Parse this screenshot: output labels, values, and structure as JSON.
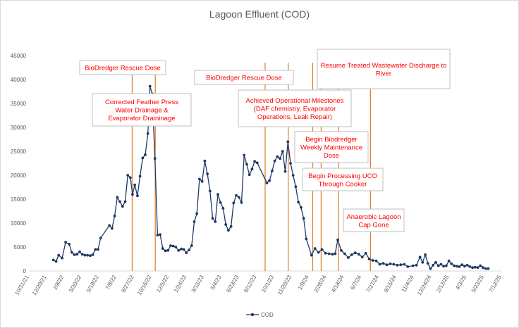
{
  "chart_data": {
    "type": "line",
    "title": "Lagoon Effluent (COD)",
    "xlabel": "",
    "ylabel": "",
    "ylim": [
      0,
      45000
    ],
    "y_ticks": [
      0,
      5000,
      10000,
      15000,
      20000,
      25000,
      30000,
      35000,
      40000,
      45000
    ],
    "x_tick_labels": [
      "10/31/21",
      "12/20/21",
      "2/8/22",
      "3/30/22",
      "5/19/22",
      "7/8/22",
      "8/27/22",
      "10/16/22",
      "12/5/22",
      "1/24/23",
      "3/15/23",
      "5/4/23",
      "6/23/23",
      "8/12/23",
      "10/1/23",
      "11/20/23",
      "1/9/24",
      "2/28/24",
      "4/18/24",
      "6/7/24",
      "7/27/24",
      "9/15/24",
      "11/4/24",
      "12/24/24",
      "2/12/25",
      "4/3/25",
      "5/23/25",
      "7/12/25"
    ],
    "x_range": [
      0,
      27
    ],
    "legend": [
      "COD"
    ],
    "legend_position": "bottom",
    "series": [
      {
        "name": "COD",
        "color": "#1f3864",
        "points": [
          [
            1.4,
            2300
          ],
          [
            1.55,
            2000
          ],
          [
            1.7,
            3300
          ],
          [
            1.9,
            2700
          ],
          [
            2.1,
            6000
          ],
          [
            2.3,
            5600
          ],
          [
            2.45,
            3900
          ],
          [
            2.6,
            3400
          ],
          [
            2.75,
            3500
          ],
          [
            2.9,
            4000
          ],
          [
            3.05,
            3500
          ],
          [
            3.2,
            3300
          ],
          [
            3.35,
            3300
          ],
          [
            3.5,
            3200
          ],
          [
            3.65,
            3400
          ],
          [
            3.8,
            4500
          ],
          [
            3.95,
            4500
          ],
          [
            4.1,
            6900
          ],
          [
            4.6,
            9500
          ],
          [
            4.75,
            8900
          ],
          [
            4.9,
            11500
          ],
          [
            5.05,
            15400
          ],
          [
            5.2,
            14500
          ],
          [
            5.35,
            13500
          ],
          [
            5.5,
            14500
          ],
          [
            5.65,
            20000
          ],
          [
            5.8,
            19500
          ],
          [
            5.92,
            16000
          ],
          [
            6.05,
            18000
          ],
          [
            6.2,
            15700
          ],
          [
            6.35,
            19800
          ],
          [
            6.5,
            23600
          ],
          [
            6.65,
            24300
          ],
          [
            6.8,
            28700
          ],
          [
            6.92,
            38600
          ],
          [
            7.05,
            37000
          ],
          [
            7.2,
            23500
          ],
          [
            7.35,
            7500
          ],
          [
            7.5,
            7600
          ],
          [
            7.65,
            4700
          ],
          [
            7.8,
            4200
          ],
          [
            7.95,
            4300
          ],
          [
            8.1,
            5300
          ],
          [
            8.25,
            5200
          ],
          [
            8.4,
            5000
          ],
          [
            8.55,
            4300
          ],
          [
            8.7,
            4600
          ],
          [
            8.85,
            4500
          ],
          [
            9.0,
            3800
          ],
          [
            9.15,
            4400
          ],
          [
            9.3,
            5300
          ],
          [
            9.45,
            10300
          ],
          [
            9.6,
            12000
          ],
          [
            9.75,
            19200
          ],
          [
            9.9,
            18700
          ],
          [
            10.05,
            23000
          ],
          [
            10.2,
            20300
          ],
          [
            10.35,
            16700
          ],
          [
            10.5,
            11000
          ],
          [
            10.65,
            10300
          ],
          [
            10.8,
            16000
          ],
          [
            10.95,
            14300
          ],
          [
            11.1,
            13100
          ],
          [
            11.25,
            9700
          ],
          [
            11.4,
            8500
          ],
          [
            11.55,
            9300
          ],
          [
            11.7,
            14200
          ],
          [
            11.85,
            15800
          ],
          [
            12.0,
            15400
          ],
          [
            12.15,
            14300
          ],
          [
            12.3,
            24200
          ],
          [
            12.45,
            22300
          ],
          [
            12.6,
            20100
          ],
          [
            12.75,
            21300
          ],
          [
            12.9,
            22900
          ],
          [
            13.05,
            22600
          ],
          [
            13.6,
            18400
          ],
          [
            13.75,
            18900
          ],
          [
            13.9,
            20900
          ],
          [
            14.05,
            23000
          ],
          [
            14.2,
            23900
          ],
          [
            14.35,
            23500
          ],
          [
            14.5,
            25000
          ],
          [
            14.65,
            20800
          ],
          [
            14.8,
            27000
          ],
          [
            14.95,
            22500
          ],
          [
            15.1,
            20000
          ],
          [
            15.25,
            17600
          ],
          [
            15.4,
            14400
          ],
          [
            15.55,
            13300
          ],
          [
            15.7,
            11000
          ],
          [
            15.85,
            6700
          ],
          [
            16.15,
            3300
          ],
          [
            16.35,
            4700
          ],
          [
            16.55,
            3900
          ],
          [
            16.75,
            4500
          ],
          [
            16.95,
            3700
          ],
          [
            17.15,
            3600
          ],
          [
            17.35,
            3500
          ],
          [
            17.5,
            3600
          ],
          [
            17.65,
            6500
          ],
          [
            17.85,
            4300
          ],
          [
            18.05,
            3600
          ],
          [
            18.25,
            2800
          ],
          [
            18.45,
            3400
          ],
          [
            18.65,
            3800
          ],
          [
            18.85,
            3500
          ],
          [
            19.05,
            2900
          ],
          [
            19.25,
            3700
          ],
          [
            19.45,
            2500
          ],
          [
            19.65,
            2200
          ],
          [
            19.85,
            2100
          ],
          [
            20.05,
            1400
          ],
          [
            20.25,
            1600
          ],
          [
            20.45,
            1300
          ],
          [
            20.65,
            1500
          ],
          [
            20.85,
            1400
          ],
          [
            21.05,
            1200
          ],
          [
            21.25,
            1300
          ],
          [
            21.45,
            1400
          ],
          [
            21.65,
            900
          ],
          [
            21.95,
            1100
          ],
          [
            22.15,
            1200
          ],
          [
            22.35,
            2900
          ],
          [
            22.5,
            1800
          ],
          [
            22.65,
            3400
          ],
          [
            22.8,
            1600
          ],
          [
            22.95,
            500
          ],
          [
            23.1,
            1200
          ],
          [
            23.25,
            1800
          ],
          [
            23.4,
            1100
          ],
          [
            23.55,
            1400
          ],
          [
            23.7,
            1000
          ],
          [
            23.85,
            1100
          ],
          [
            24.0,
            2100
          ],
          [
            24.15,
            1500
          ],
          [
            24.3,
            1100
          ],
          [
            24.45,
            1000
          ],
          [
            24.6,
            900
          ],
          [
            24.75,
            1300
          ],
          [
            24.9,
            1000
          ],
          [
            25.05,
            1200
          ],
          [
            25.2,
            900
          ],
          [
            25.35,
            700
          ],
          [
            25.5,
            800
          ],
          [
            25.65,
            700
          ],
          [
            25.8,
            1100
          ],
          [
            25.95,
            700
          ],
          [
            26.1,
            500
          ],
          [
            26.25,
            500
          ]
        ]
      }
    ],
    "event_markers": [
      {
        "x": 5.9,
        "label": "BioDredger Rescue Dose"
      },
      {
        "x": 7.22,
        "label": "Corrected Feather Press Water Drainage & Evaporator Drainage"
      },
      {
        "x": 13.5,
        "label": "BioDredger Rescue Dose"
      },
      {
        "x": 14.82,
        "label": "Achieved Operational Milestones (DAF chemistry, Evaporator Operations, Leak Repair)"
      },
      {
        "x": 16.22,
        "label": "Begin Biodredger Weekly Maintenance Dose"
      },
      {
        "x": 16.7,
        "label": "Begin Processing UCO Through Cooker"
      },
      {
        "x": 17.7,
        "label": "Resume Treated Wastewater Discharge to River"
      },
      {
        "x": 19.52,
        "label": "Anaerobic Lagoon Cap Gone"
      }
    ],
    "marker_line_color": "#e07b20",
    "annotation_text_color": "#ff0000"
  }
}
